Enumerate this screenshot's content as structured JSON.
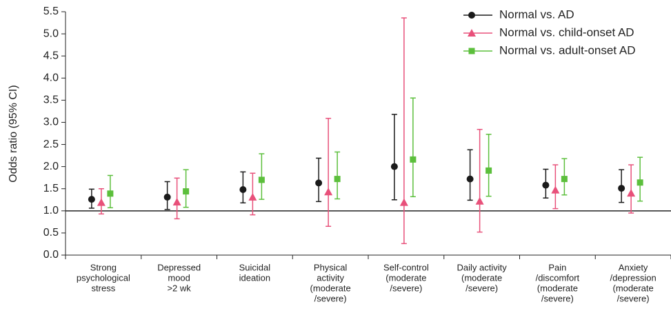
{
  "chart_data": {
    "type": "errorbar",
    "ylabel": "Odds ratio (95% CI)",
    "categories": [
      [
        "Strong",
        "psychological",
        "stress"
      ],
      [
        "Depressed",
        "mood",
        ">2 wk"
      ],
      [
        "Suicidal",
        "ideation"
      ],
      [
        "Physical",
        "activity",
        "(moderate",
        "/severe)"
      ],
      [
        "Self-control",
        "(moderate",
        "/severe)"
      ],
      [
        "Daily activity",
        "(moderate",
        "/severe)"
      ],
      [
        "Pain",
        "/discomfort",
        "(moderate",
        "/severe)"
      ],
      [
        "Anxiety",
        "/depression",
        "(moderate",
        "/severe)"
      ]
    ],
    "series": [
      {
        "name": "Normal vs. AD",
        "color": "#1a1a1a",
        "marker": "circle",
        "values": [
          1.26,
          1.31,
          1.48,
          1.63,
          2.0,
          1.72,
          1.58,
          1.51
        ],
        "lower": [
          1.06,
          1.03,
          1.18,
          1.21,
          1.25,
          1.24,
          1.29,
          1.19
        ],
        "upper": [
          1.49,
          1.66,
          1.88,
          2.19,
          3.18,
          2.38,
          1.94,
          1.93
        ]
      },
      {
        "name": "Normal vs. child-onset AD",
        "color": "#e8507a",
        "marker": "triangle",
        "values": [
          1.19,
          1.2,
          1.31,
          1.43,
          1.19,
          1.22,
          1.47,
          1.4
        ],
        "lower": [
          0.93,
          0.82,
          0.91,
          0.65,
          0.26,
          0.52,
          1.05,
          0.95
        ],
        "upper": [
          1.5,
          1.74,
          1.85,
          3.09,
          5.36,
          2.84,
          2.04,
          2.04
        ]
      },
      {
        "name": "Normal vs. adult-onset AD",
        "color": "#5cbf3c",
        "marker": "square",
        "values": [
          1.39,
          1.44,
          1.7,
          1.72,
          2.16,
          1.91,
          1.72,
          1.64
        ],
        "lower": [
          1.07,
          1.08,
          1.26,
          1.27,
          1.32,
          1.33,
          1.36,
          1.22
        ],
        "upper": [
          1.8,
          1.93,
          2.29,
          2.33,
          3.55,
          2.73,
          2.18,
          2.21
        ]
      }
    ],
    "ylim": [
      0,
      5.5
    ],
    "yticks": [
      {
        "value": 0,
        "label": "0.0"
      },
      0.5,
      {
        "value": 1,
        "label": "1.0"
      },
      1.5,
      {
        "value": 2,
        "label": "2.0"
      },
      2.5,
      {
        "value": 3,
        "label": "3.0"
      },
      3.5,
      {
        "value": 4,
        "label": "4.0"
      },
      4.5,
      {
        "value": 5,
        "label": "5.0"
      },
      5.5
    ],
    "reference_line": 1,
    "legend": "top-right"
  }
}
